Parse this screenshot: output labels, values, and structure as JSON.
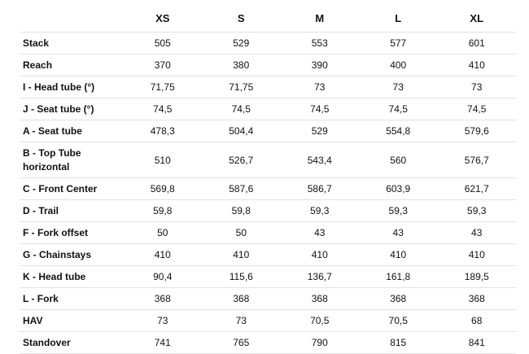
{
  "table": {
    "columns": [
      "",
      "XS",
      "S",
      "M",
      "L",
      "XL"
    ],
    "rows": [
      {
        "label": "Stack",
        "values": [
          "505",
          "529",
          "553",
          "577",
          "601"
        ]
      },
      {
        "label": "Reach",
        "values": [
          "370",
          "380",
          "390",
          "400",
          "410"
        ]
      },
      {
        "label": "I - Head tube (°)",
        "values": [
          "71,75",
          "71,75",
          "73",
          "73",
          "73"
        ]
      },
      {
        "label": "J - Seat tube (°)",
        "values": [
          "74,5",
          "74,5",
          "74,5",
          "74,5",
          "74,5"
        ]
      },
      {
        "label": "A - Seat tube",
        "values": [
          "478,3",
          "504,4",
          "529",
          "554,8",
          "579,6"
        ]
      },
      {
        "label": "B - Top Tube horizontal",
        "values": [
          "510",
          "526,7",
          "543,4",
          "560",
          "576,7"
        ]
      },
      {
        "label": "C - Front Center",
        "values": [
          "569,8",
          "587,6",
          "586,7",
          "603,9",
          "621,7"
        ]
      },
      {
        "label": "D - Trail",
        "values": [
          "59,8",
          "59,8",
          "59,3",
          "59,3",
          "59,3"
        ]
      },
      {
        "label": "F - Fork offset",
        "values": [
          "50",
          "50",
          "43",
          "43",
          "43"
        ]
      },
      {
        "label": "G - Chainstays",
        "values": [
          "410",
          "410",
          "410",
          "410",
          "410"
        ]
      },
      {
        "label": "K - Head tube",
        "values": [
          "90,4",
          "115,6",
          "136,7",
          "161,8",
          "189,5"
        ]
      },
      {
        "label": "L - Fork",
        "values": [
          "368",
          "368",
          "368",
          "368",
          "368"
        ]
      },
      {
        "label": "HAV",
        "values": [
          "73",
          "73",
          "70,5",
          "70,5",
          "68"
        ]
      },
      {
        "label": "Standover",
        "values": [
          "741",
          "765",
          "790",
          "815",
          "841"
        ]
      }
    ]
  }
}
